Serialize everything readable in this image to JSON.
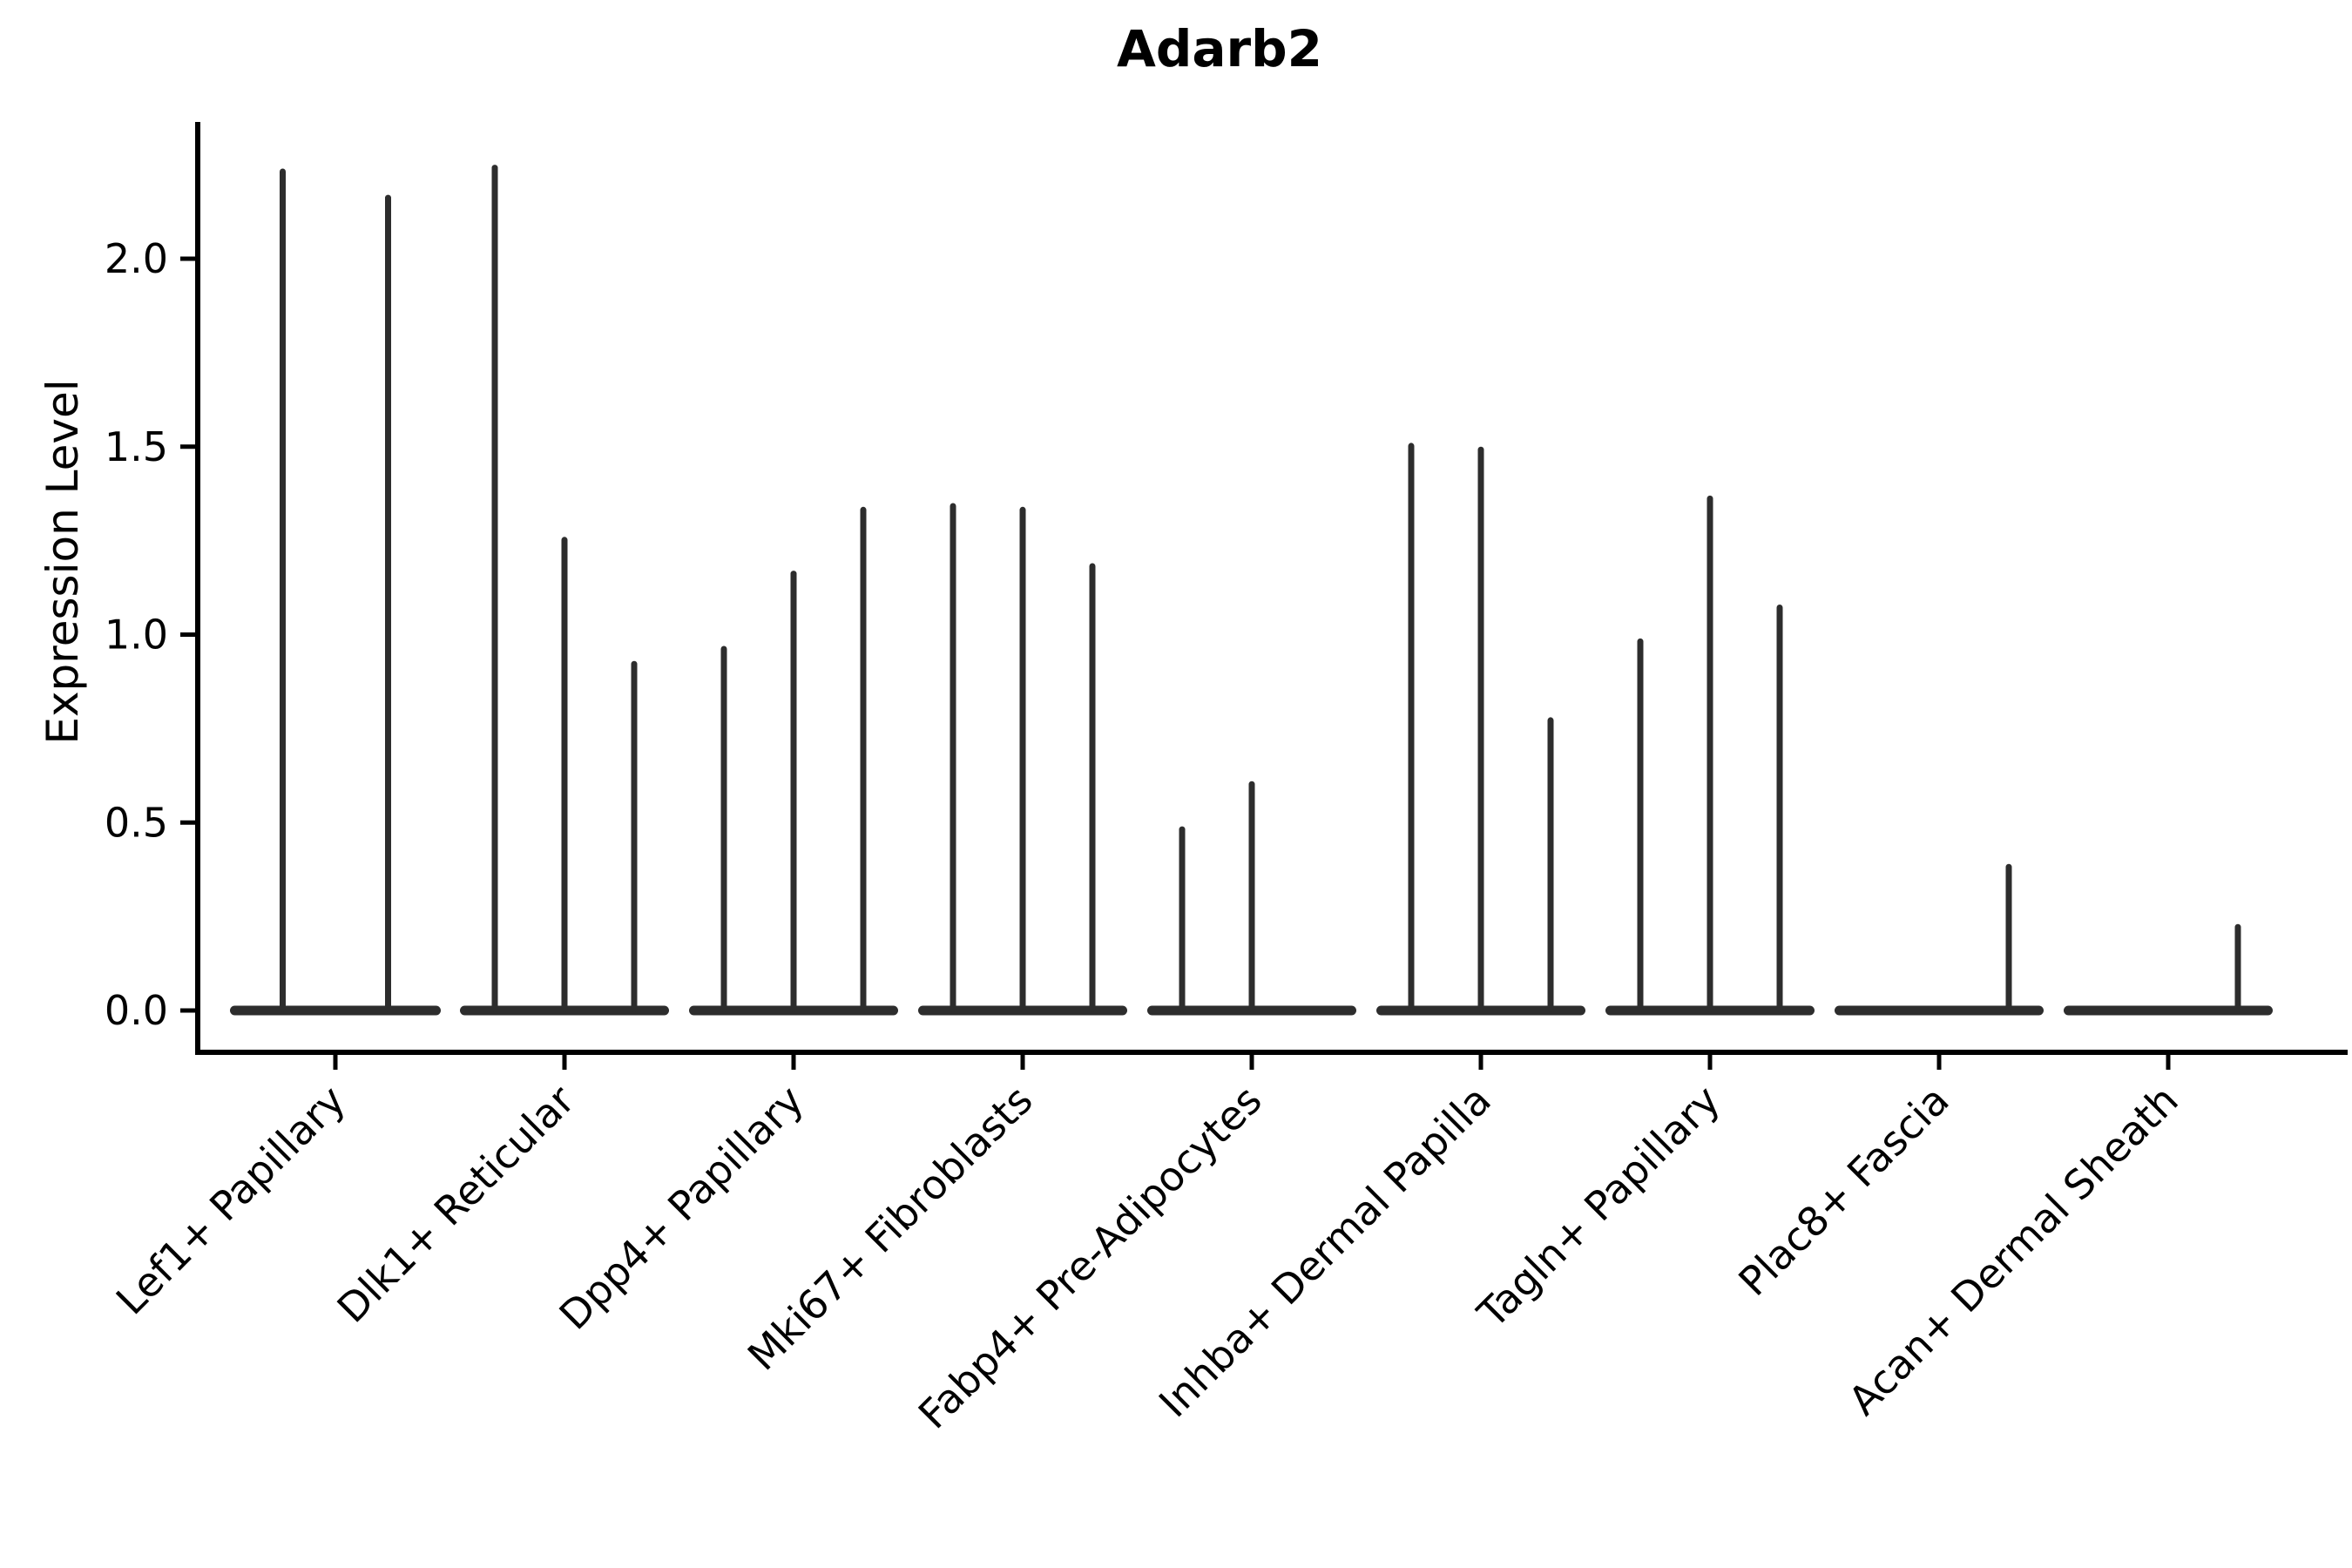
{
  "chart_data": {
    "type": "violin",
    "title": "Adarb2",
    "ylabel": "Expression Level",
    "xlabel": "",
    "categories": [
      "Lef1+ Papillary",
      "Dlk1+ Reticular",
      "Dpp4+ Papillary",
      "Mki67+ Fibroblasts",
      "Fabp4+ Pre-Adipocytes",
      "Inhba+ Dermal Papilla",
      "Tagln+ Papillary",
      "Plac8+ Fascia",
      "Acan+ Dermal Sheath"
    ],
    "groups": [
      {
        "category": "Lef1+ Papillary",
        "violin_max_expression": [
          2.24,
          2.17
        ]
      },
      {
        "category": "Dlk1+ Reticular",
        "violin_max_expression": [
          2.25,
          1.26,
          0.93
        ]
      },
      {
        "category": "Dpp4+ Papillary",
        "violin_max_expression": [
          0.97,
          1.17,
          1.34
        ]
      },
      {
        "category": "Mki67+ Fibroblasts",
        "violin_max_expression": [
          1.35,
          1.34,
          1.19
        ]
      },
      {
        "category": "Fabp4+ Pre-Adipocytes",
        "violin_max_expression": [
          0.49,
          0.61,
          0.0
        ]
      },
      {
        "category": "Inhba+ Dermal Papilla",
        "violin_max_expression": [
          1.51,
          1.5,
          0.78
        ]
      },
      {
        "category": "Tagln+ Papillary",
        "violin_max_expression": [
          0.99,
          1.37,
          1.08
        ]
      },
      {
        "category": "Plac8+ Fascia",
        "violin_max_expression": [
          0.0,
          0.0,
          0.39
        ]
      },
      {
        "category": "Acan+ Dermal Sheath",
        "violin_max_expression": [
          0.0,
          0.0,
          0.23
        ]
      }
    ],
    "yticks": [
      0.0,
      0.5,
      1.0,
      1.5,
      2.0
    ],
    "ytick_labels": [
      "0.0",
      "0.5",
      "1.0",
      "1.5",
      "2.0"
    ],
    "ylim": [
      -0.11,
      2.36
    ],
    "grid": false,
    "legend_position": "none",
    "violin_color": "#2d2d2d",
    "axis_color": "#000000",
    "background_color": "#ffffff"
  }
}
